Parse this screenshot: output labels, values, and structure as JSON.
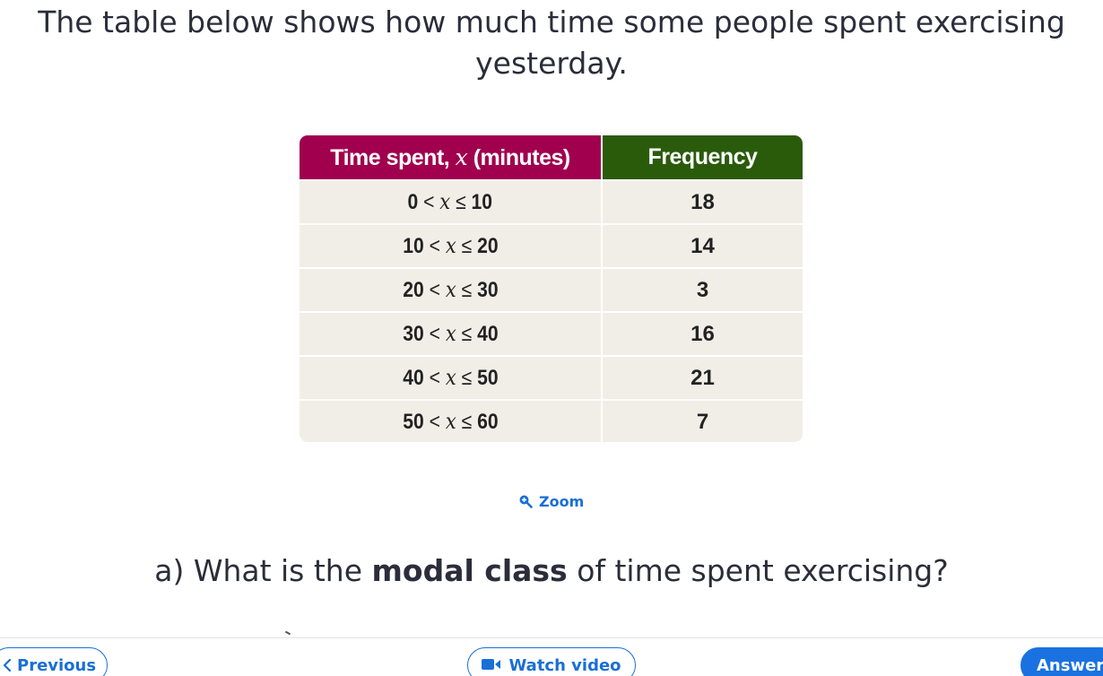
{
  "intro": {
    "text": "The table below shows how much time some people spent exercising yesterday."
  },
  "table": {
    "headers": {
      "col1_prefix": "Time spent, ",
      "col1_var": "x",
      "col1_suffix": " (minutes)",
      "col2": "Frequency"
    },
    "rows": [
      {
        "low": "0",
        "var": "x",
        "high": "10",
        "frequency": "18"
      },
      {
        "low": "10",
        "var": "x",
        "high": "20",
        "frequency": "14"
      },
      {
        "low": "20",
        "var": "x",
        "high": "30",
        "frequency": "3"
      },
      {
        "low": "30",
        "var": "x",
        "high": "40",
        "frequency": "16"
      },
      {
        "low": "40",
        "var": "x",
        "high": "50",
        "frequency": "21"
      },
      {
        "low": "50",
        "var": "x",
        "high": "60",
        "frequency": "7"
      }
    ],
    "colors": {
      "header1_bg": "#a0004e",
      "header2_bg": "#2a5b0b",
      "cell_bg": "#f1eee8"
    }
  },
  "zoom": {
    "label": "Zoom",
    "icon": "zoom-in-icon"
  },
  "question": {
    "prefix": "a) What is the ",
    "bold": "modal class",
    "suffix": " of time spent exercising?"
  },
  "nav": {
    "previous_label": "Previous",
    "previous_icon": "chevron-left-icon",
    "watch_video_label": "Watch video",
    "watch_video_icon": "video-camera-icon",
    "answer_label": "Answer"
  },
  "colors": {
    "accent": "#1a6fd6",
    "text": "#2b2d3a"
  }
}
